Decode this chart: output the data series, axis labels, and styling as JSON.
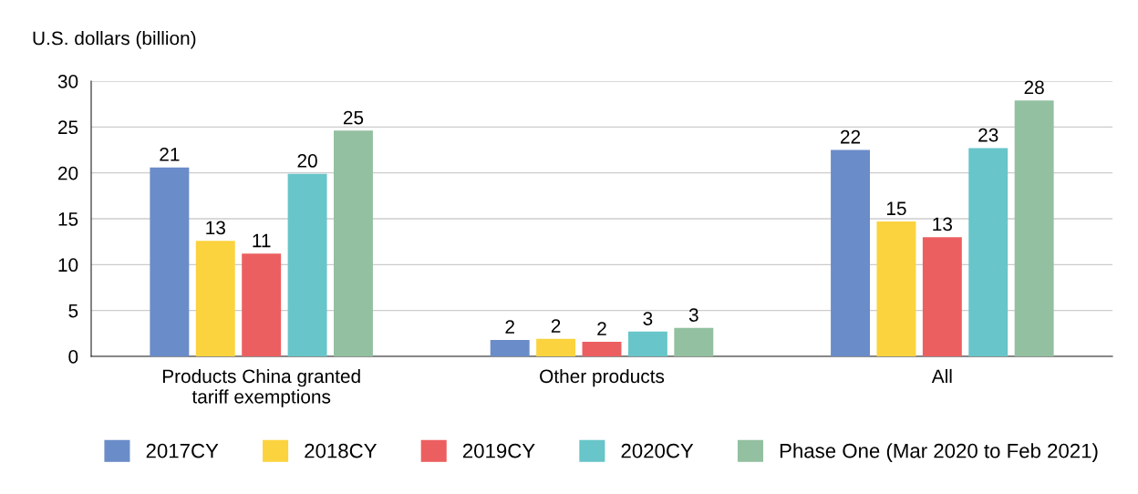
{
  "chart_data": {
    "type": "bar",
    "ylabel": "U.S. dollars (billion)",
    "categories": [
      "Products China granted\ntariff exemptions",
      "Other products",
      "All"
    ],
    "series": [
      {
        "name": "2017CY",
        "color": "#6a8cc9",
        "values": [
          20.6,
          1.8,
          22.5
        ],
        "value_labels": [
          "21",
          "2",
          "22"
        ]
      },
      {
        "name": "2018CY",
        "color": "#fbd33f",
        "values": [
          12.6,
          1.9,
          14.7
        ],
        "value_labels": [
          "13",
          "2",
          "15"
        ]
      },
      {
        "name": "2019CY",
        "color": "#ec5f60",
        "values": [
          11.2,
          1.6,
          13.0
        ],
        "value_labels": [
          "11",
          "2",
          "13"
        ]
      },
      {
        "name": "2020CY",
        "color": "#68c5c9",
        "values": [
          19.9,
          2.7,
          22.7
        ],
        "value_labels": [
          "20",
          "3",
          "23"
        ]
      },
      {
        "name": "Phase One (Mar 2020 to Feb 2021)",
        "color": "#93c0a0",
        "values": [
          24.6,
          3.1,
          27.9
        ],
        "value_labels": [
          "25",
          "3",
          "28"
        ]
      }
    ],
    "ylim": [
      0,
      30
    ],
    "yticks": [
      0,
      5,
      10,
      15,
      20,
      25,
      30
    ],
    "grid": "y",
    "legend": "bottom"
  }
}
